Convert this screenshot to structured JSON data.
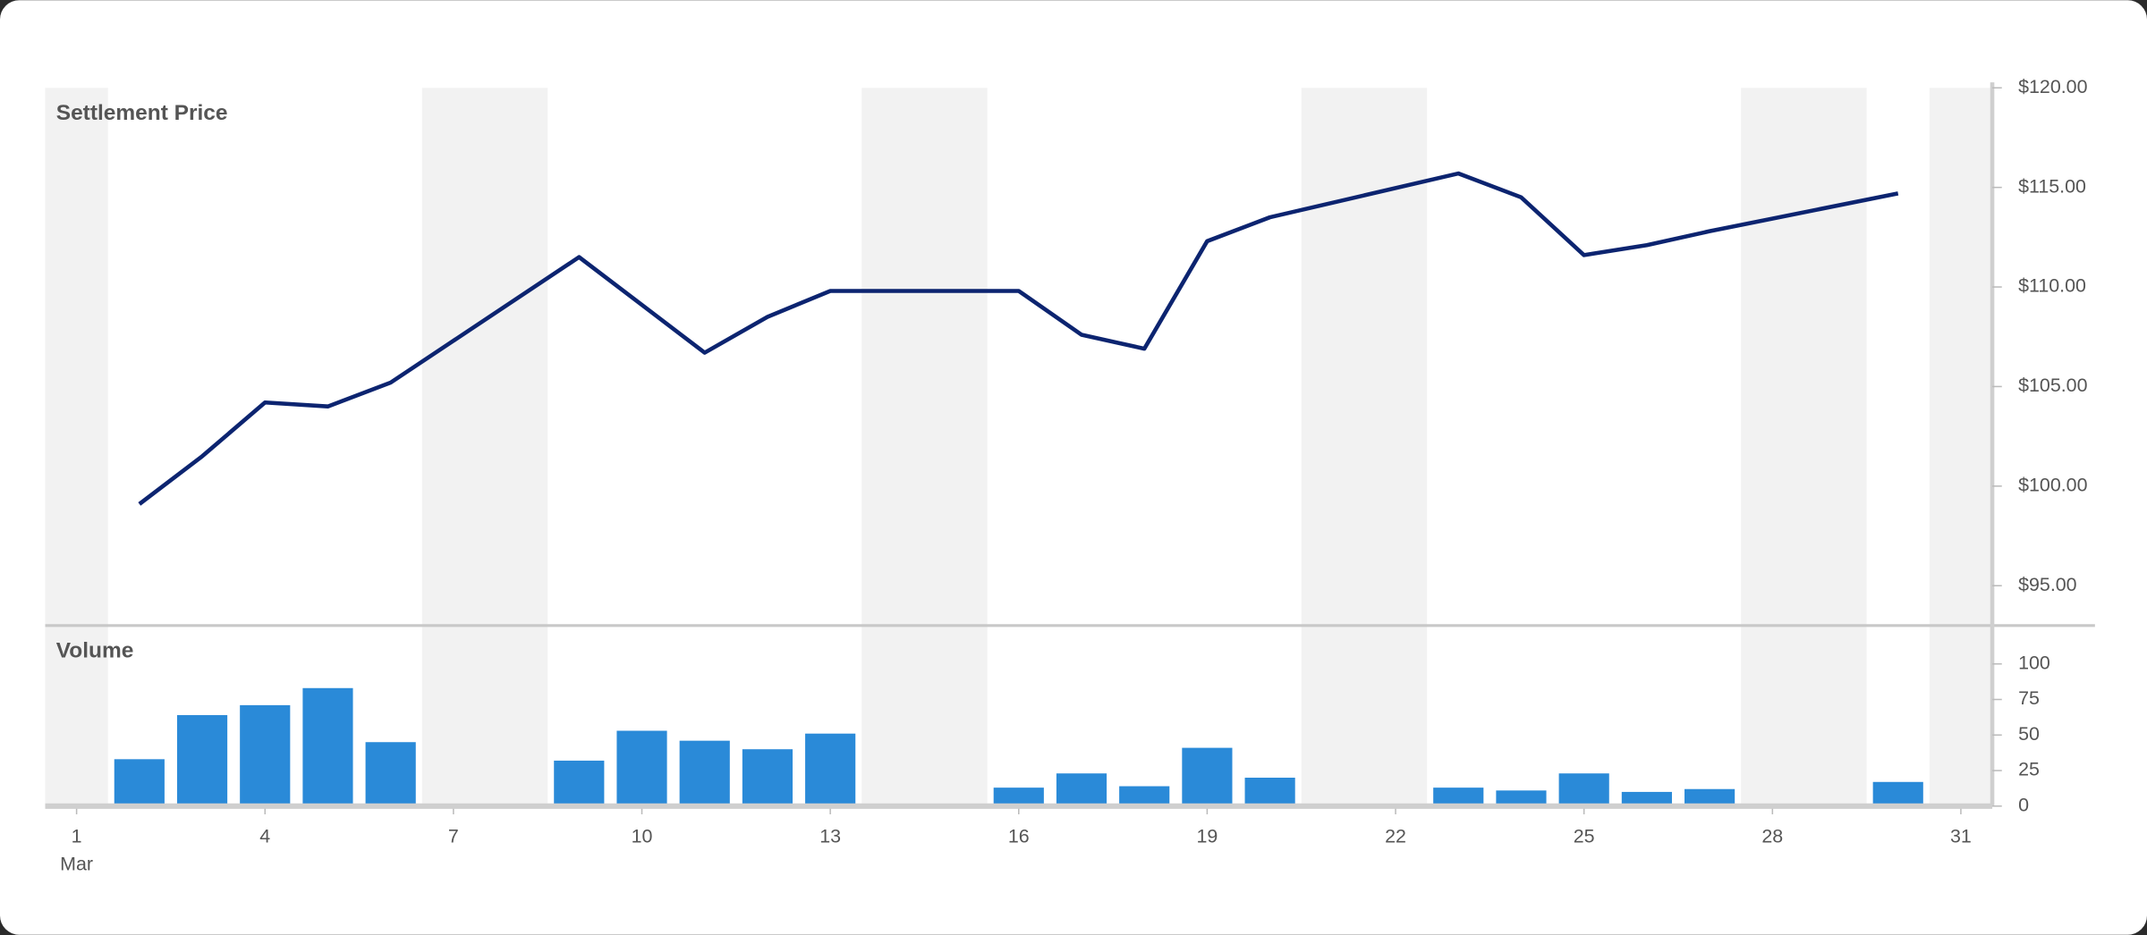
{
  "chart_data": [
    {
      "type": "line",
      "title": "Settlement Price",
      "color": "#0c2470",
      "x": [
        2,
        3,
        4,
        5,
        6,
        9,
        10,
        11,
        12,
        13,
        16,
        17,
        18,
        19,
        20,
        23,
        24,
        25,
        26,
        27,
        30
      ],
      "values": [
        99.1,
        101.5,
        104.2,
        104.0,
        105.2,
        111.5,
        109.1,
        106.7,
        108.5,
        109.8,
        109.8,
        107.6,
        106.9,
        112.3,
        113.5,
        115.7,
        114.5,
        111.6,
        112.1,
        112.8,
        114.7
      ],
      "xlim": [
        0.5,
        31.5
      ],
      "ylim": [
        93,
        120
      ],
      "yticks": [
        {
          "value": 95,
          "label": "$95.00"
        },
        {
          "value": 100,
          "label": "$100.00"
        },
        {
          "value": 105,
          "label": "$105.00"
        },
        {
          "value": 110,
          "label": "$110.00"
        },
        {
          "value": 115,
          "label": "$115.00"
        },
        {
          "value": 120,
          "label": "$120.00"
        }
      ],
      "shaded": [
        [
          0.5,
          1.5
        ],
        [
          6.5,
          8.5
        ],
        [
          13.5,
          15.5
        ],
        [
          20.5,
          22.5
        ],
        [
          27.5,
          29.5
        ],
        [
          30.5,
          31.5
        ]
      ],
      "shade_color": "#f2f2f2"
    },
    {
      "type": "bar",
      "title": "Volume",
      "color": "#2a8ad8",
      "x": [
        2,
        3,
        4,
        5,
        6,
        9,
        10,
        11,
        12,
        13,
        16,
        17,
        18,
        19,
        20,
        23,
        24,
        25,
        26,
        27,
        30
      ],
      "values": [
        33,
        64,
        71,
        83,
        45,
        32,
        53,
        46,
        40,
        51,
        13,
        23,
        14,
        41,
        20,
        13,
        11,
        23,
        10,
        12,
        17
      ],
      "xlim": [
        0.5,
        31.5
      ],
      "ylim": [
        0,
        127
      ],
      "yticks": [
        0,
        25,
        50,
        75,
        100
      ],
      "xticks": [
        1,
        4,
        7,
        10,
        13,
        16,
        19,
        22,
        25,
        28,
        31
      ],
      "x_sublabel": "Mar"
    }
  ]
}
